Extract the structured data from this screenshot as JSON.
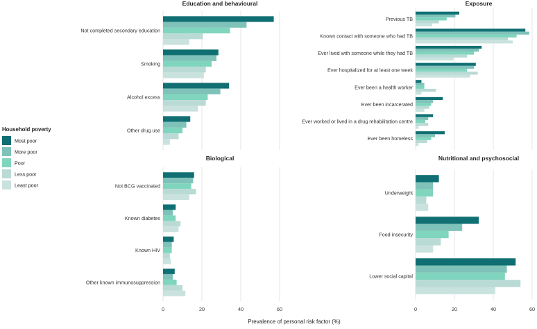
{
  "chart_data": {
    "type": "bar",
    "orientation": "horizontal",
    "xlabel": "Prevalence of personal risk factor (%)",
    "xlim": [
      0,
      60
    ],
    "xticks": [
      0,
      20,
      40,
      60
    ],
    "legend": {
      "title": "Household poverty",
      "position": "left",
      "entries": [
        {
          "name": "Most poor",
          "color": "#106f73"
        },
        {
          "name": "More poor",
          "color": "#7fc2b9"
        },
        {
          "name": "Poor",
          "color": "#7fd5bd"
        },
        {
          "name": "Less poor",
          "color": "#b9dad5"
        },
        {
          "name": "Least poor",
          "color": "#c9e2de"
        }
      ]
    },
    "panels": [
      {
        "title": "Education and behavioural",
        "categories": [
          "Not completed secondary education",
          "Smoking",
          "Alcohol excess",
          "Other drug use"
        ],
        "series": [
          {
            "name": "Most poor",
            "values": [
              57,
              28.5,
              34,
              14
            ]
          },
          {
            "name": "More poor",
            "values": [
              43,
              27.5,
              29.5,
              12
            ]
          },
          {
            "name": "Poor",
            "values": [
              34.5,
              25,
              23,
              10
            ]
          },
          {
            "name": "Less poor",
            "values": [
              20.5,
              22,
              22,
              8
            ]
          },
          {
            "name": "Least poor",
            "values": [
              13.5,
              21,
              18,
              3.5
            ]
          }
        ]
      },
      {
        "title": "Exposure",
        "categories": [
          "Previous TB",
          "Known contact with someone who had TB",
          "Ever lived with someone while they had TB",
          "Ever hospitalized for at least one week",
          "Ever been a health worker",
          "Ever been incarcerated",
          "Ever worked or lived in a drug rehabilitation centre",
          "Ever been homeless"
        ],
        "series": [
          {
            "name": "Most poor",
            "values": [
              22.5,
              56.5,
              34,
              31,
              3,
              14,
              9,
              15
            ]
          },
          {
            "name": "More poor",
            "values": [
              20.5,
              58.5,
              32.5,
              30,
              4.5,
              9,
              6.5,
              10
            ]
          },
          {
            "name": "Poor",
            "values": [
              16,
              52,
              30,
              26.5,
              4.5,
              8,
              5,
              8
            ]
          },
          {
            "name": "Less poor",
            "values": [
              12,
              47.5,
              26.5,
              32,
              10.5,
              7,
              6.5,
              6
            ]
          },
          {
            "name": "Least poor",
            "values": [
              8.5,
              50,
              19.5,
              28,
              3,
              4.5,
              1.5,
              1.5
            ]
          }
        ]
      },
      {
        "title": "Biological",
        "categories": [
          "Not BCG vaccinated",
          "Known diabetes",
          "Known HIV",
          "Other known immunosuppression"
        ],
        "series": [
          {
            "name": "Most poor",
            "values": [
              16,
              6.5,
              5.5,
              6
            ]
          },
          {
            "name": "More poor",
            "values": [
              15.5,
              5,
              4.5,
              5
            ]
          },
          {
            "name": "Poor",
            "values": [
              14.5,
              6.5,
              4.5,
              7
            ]
          },
          {
            "name": "Less poor",
            "values": [
              17,
              9,
              3.5,
              10
            ]
          },
          {
            "name": "Least poor",
            "values": [
              13.5,
              8,
              4,
              11.5
            ]
          }
        ]
      },
      {
        "title": "Nutritional and psychosocial",
        "categories": [
          "Underweight",
          "Food insecurity",
          "Lower social capital"
        ],
        "series": [
          {
            "name": "Most poor",
            "values": [
              12,
              32.5,
              51.5
            ]
          },
          {
            "name": "More poor",
            "values": [
              9,
              24,
              47
            ]
          },
          {
            "name": "Poor",
            "values": [
              9,
              17,
              46
            ]
          },
          {
            "name": "Less poor",
            "values": [
              5.5,
              13,
              54
            ]
          },
          {
            "name": "Least poor",
            "values": [
              6.5,
              9,
              41
            ]
          }
        ]
      }
    ]
  }
}
